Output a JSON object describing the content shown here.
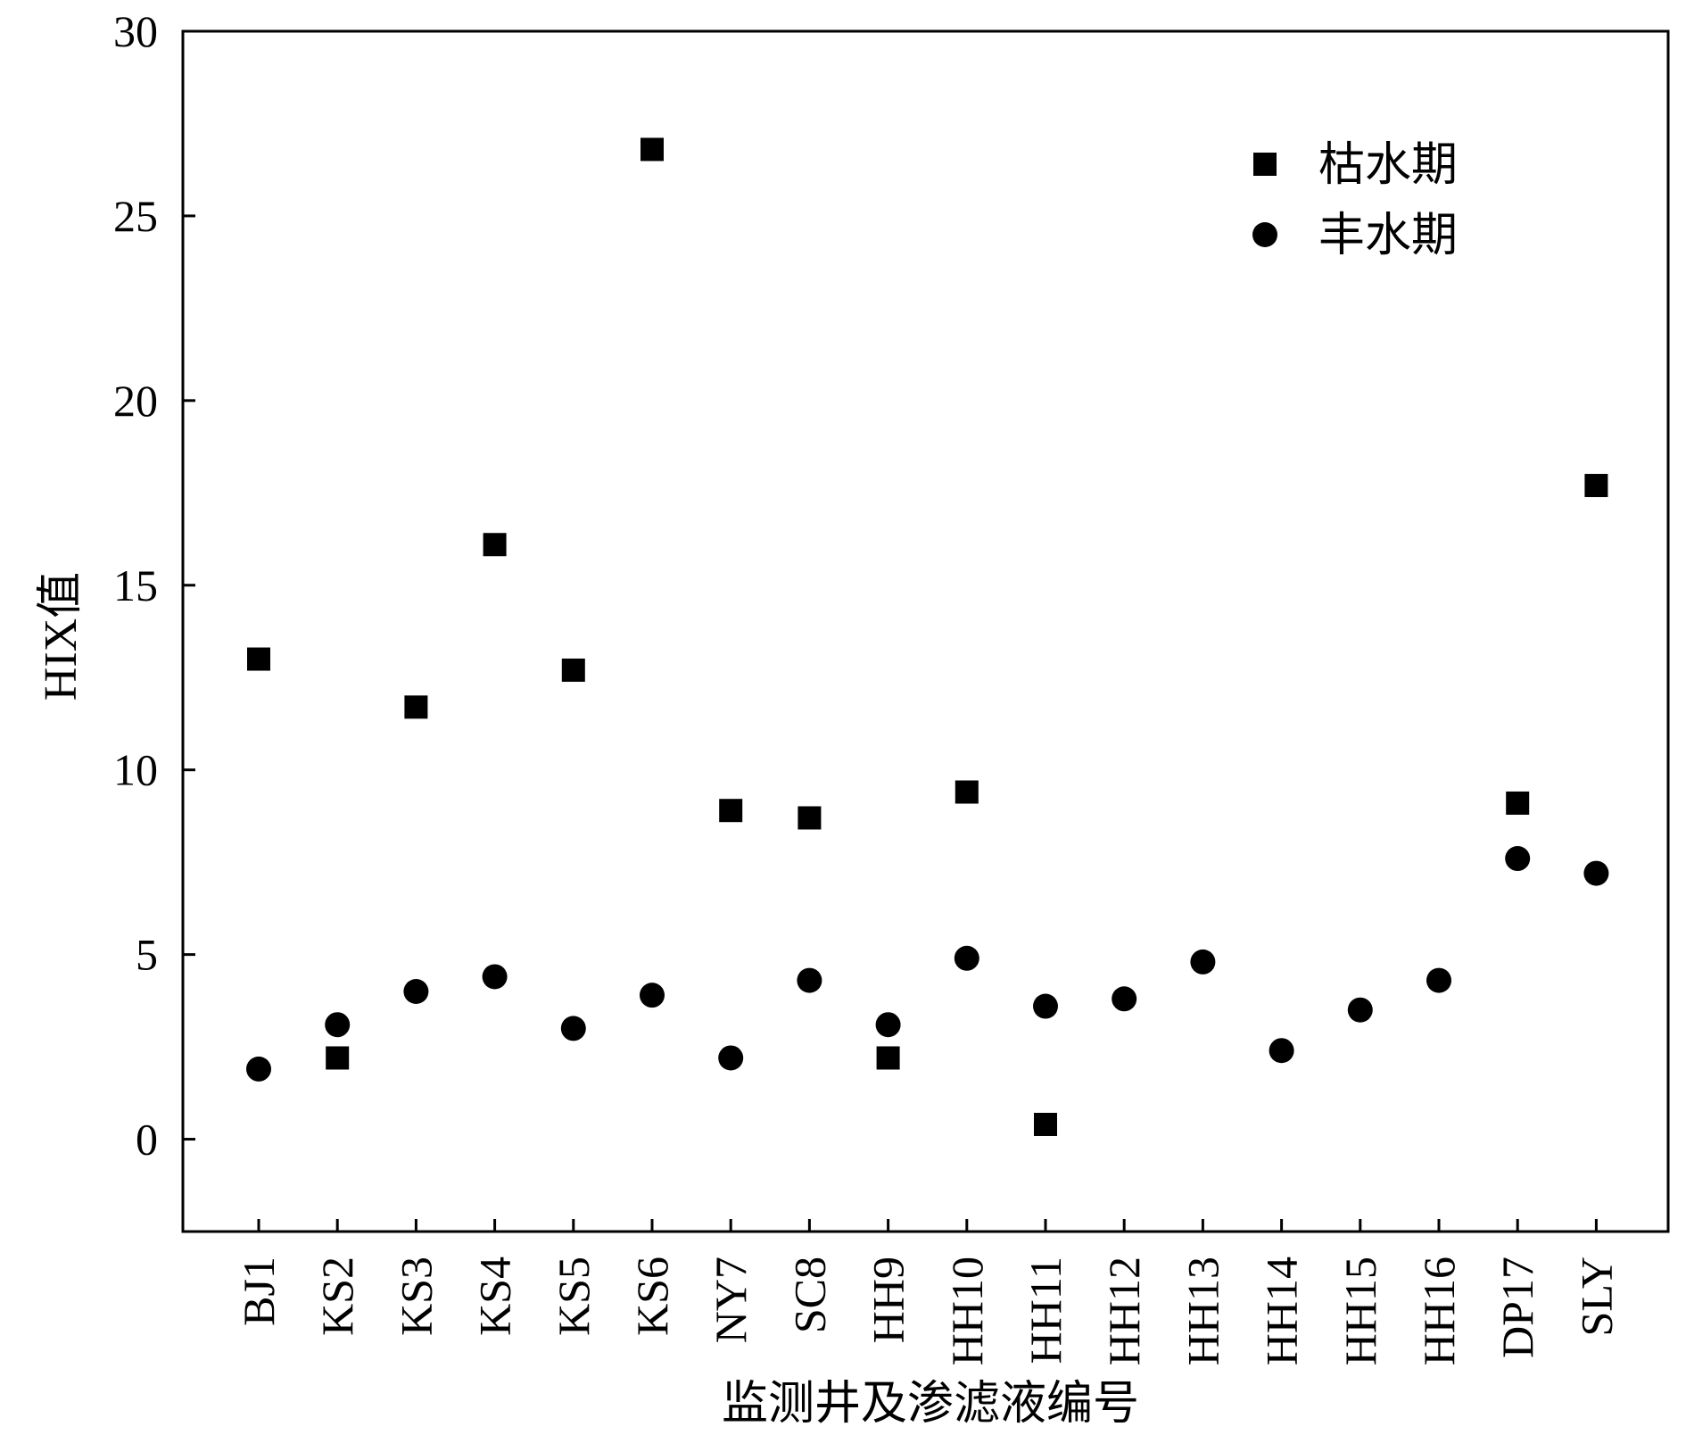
{
  "chart_data": {
    "type": "scatter",
    "title": "",
    "xlabel": "监测井及渗滤液编号",
    "ylabel": "HIX值",
    "ylim": [
      -2.5,
      30
    ],
    "yticks": [
      0,
      5,
      10,
      15,
      20,
      25,
      30
    ],
    "grid": false,
    "legend_position": "top-right",
    "categories": [
      "BJ1",
      "KS2",
      "KS3",
      "KS4",
      "KS5",
      "KS6",
      "NY7",
      "SC8",
      "HH9",
      "HH10",
      "HH11",
      "HH12",
      "HH13",
      "HH14",
      "HH15",
      "HH16",
      "DP17",
      "SLY"
    ],
    "series": [
      {
        "name": "枯水期",
        "marker": "square",
        "color": "#000000",
        "values": [
          13.0,
          2.2,
          11.7,
          16.1,
          12.7,
          26.8,
          8.9,
          8.7,
          2.2,
          9.4,
          0.4,
          null,
          null,
          null,
          null,
          null,
          9.1,
          17.7
        ]
      },
      {
        "name": "丰水期",
        "marker": "circle",
        "color": "#000000",
        "values": [
          1.9,
          3.1,
          4.0,
          4.4,
          3.0,
          3.9,
          2.2,
          4.3,
          3.1,
          4.9,
          3.6,
          3.8,
          4.8,
          2.4,
          3.5,
          4.3,
          7.6,
          7.2
        ]
      }
    ]
  }
}
